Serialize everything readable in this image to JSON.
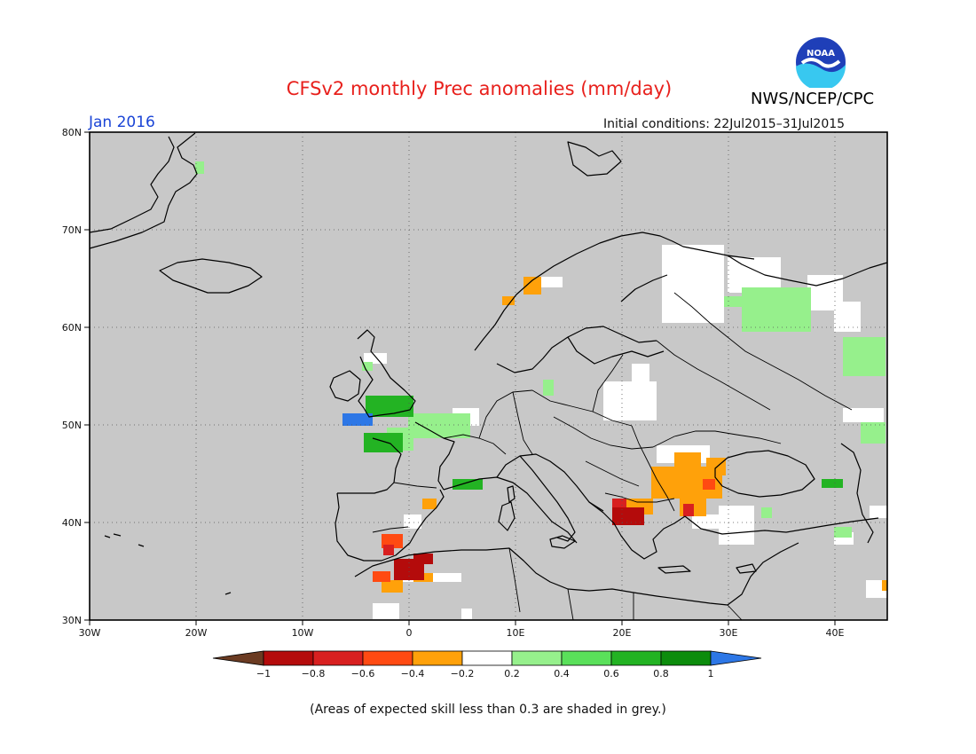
{
  "header": {
    "title": "CFSv2 monthly Prec anomalies (mm/day)",
    "org": "NWS/NCEP/CPC",
    "logo_text": "NOAA",
    "month": "Jan 2016",
    "initial_conditions": "Initial conditions: 22Jul2015–31Jul2015"
  },
  "map": {
    "lat_labels": [
      "80N",
      "70N",
      "60N",
      "50N",
      "40N",
      "30N"
    ],
    "lon_labels": [
      "30W",
      "20W",
      "10W",
      "0",
      "10E",
      "20E",
      "30E",
      "40E"
    ],
    "grid": "dotted",
    "background_color": "#c8c8c8"
  },
  "colorbar": {
    "labels": [
      "−1",
      "−0.8",
      "−0.6",
      "−0.4",
      "−0.2",
      "0.2",
      "0.4",
      "0.6",
      "0.8",
      "1"
    ],
    "colors": [
      "#6b3b22",
      "#b40b0b",
      "#d82020",
      "#ff4a12",
      "#ffa10a",
      "#ffffff",
      "#96f08c",
      "#5ae05a",
      "#23b323",
      "#0c8c0c",
      "#2d77e6"
    ]
  },
  "footnote": "(Areas of expected skill less than 0.3 are shaded in grey.)"
}
